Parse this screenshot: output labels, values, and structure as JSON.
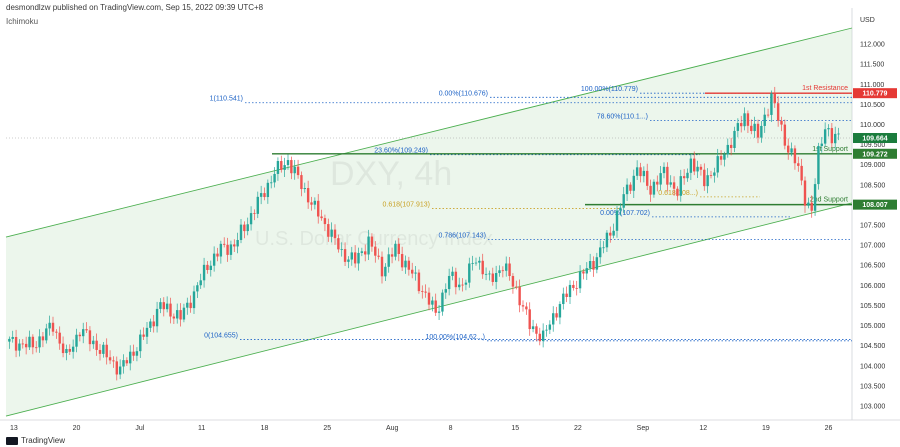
{
  "header": {
    "publish_info": "desmondlzw published on TradingView.com, Sep 15, 2022 09:39 UTC+8",
    "indicator": "Ichimoku",
    "footer_brand": "TradingView"
  },
  "chart_data": {
    "type": "candlestick",
    "watermark_symbol": "DXY, 4h",
    "watermark_name": "U.S. Dollar Currency Index",
    "currency": "USD",
    "y_ticks": [
      "112.000",
      "111.500",
      "111.000",
      "110.500",
      "110.000",
      "109.500",
      "109.000",
      "108.500",
      "108.000",
      "107.500",
      "107.000",
      "106.500",
      "106.000",
      "105.500",
      "105.000",
      "104.500",
      "104.000",
      "103.500",
      "103.000"
    ],
    "ylim": [
      102.8,
      112.4
    ],
    "x_ticks": [
      "13",
      "20",
      "Jul",
      "11",
      "18",
      "25",
      "Aug",
      "8",
      "15",
      "22",
      "Sep",
      "12",
      "19",
      "26"
    ],
    "close_path": [
      {
        "t": 0,
        "v": 104.6
      },
      {
        "t": 4,
        "v": 104.5
      },
      {
        "t": 7,
        "v": 105.0
      },
      {
        "t": 9,
        "v": 104.2
      },
      {
        "t": 11,
        "v": 104.9
      },
      {
        "t": 14,
        "v": 104.4
      },
      {
        "t": 17,
        "v": 103.9
      },
      {
        "t": 20,
        "v": 104.6
      },
      {
        "t": 23,
        "v": 105.5
      },
      {
        "t": 26,
        "v": 105.2
      },
      {
        "t": 28,
        "v": 105.8
      },
      {
        "t": 30,
        "v": 106.5
      },
      {
        "t": 32,
        "v": 106.9
      },
      {
        "t": 34,
        "v": 107.0
      },
      {
        "t": 36,
        "v": 107.6
      },
      {
        "t": 38,
        "v": 108.2
      },
      {
        "t": 40,
        "v": 108.8
      },
      {
        "t": 42,
        "v": 109.1
      },
      {
        "t": 44,
        "v": 108.5
      },
      {
        "t": 46,
        "v": 107.9
      },
      {
        "t": 48,
        "v": 107.4
      },
      {
        "t": 50,
        "v": 106.8
      },
      {
        "t": 52,
        "v": 106.6
      },
      {
        "t": 54,
        "v": 107.1
      },
      {
        "t": 56,
        "v": 106.4
      },
      {
        "t": 58,
        "v": 106.9
      },
      {
        "t": 60,
        "v": 106.4
      },
      {
        "t": 62,
        "v": 105.9
      },
      {
        "t": 64,
        "v": 105.3
      },
      {
        "t": 66,
        "v": 106.2
      },
      {
        "t": 68,
        "v": 106.0
      },
      {
        "t": 70,
        "v": 106.7
      },
      {
        "t": 72,
        "v": 106.1
      },
      {
        "t": 74,
        "v": 106.5
      },
      {
        "t": 76,
        "v": 105.9
      },
      {
        "t": 78,
        "v": 105.0
      },
      {
        "t": 80,
        "v": 104.7
      },
      {
        "t": 82,
        "v": 105.4
      },
      {
        "t": 84,
        "v": 105.9
      },
      {
        "t": 86,
        "v": 106.3
      },
      {
        "t": 88,
        "v": 106.7
      },
      {
        "t": 90,
        "v": 107.3
      },
      {
        "t": 92,
        "v": 108.2
      },
      {
        "t": 94,
        "v": 108.9
      },
      {
        "t": 96,
        "v": 108.4
      },
      {
        "t": 98,
        "v": 108.8
      },
      {
        "t": 100,
        "v": 108.3
      },
      {
        "t": 102,
        "v": 109.1
      },
      {
        "t": 104,
        "v": 108.6
      },
      {
        "t": 106,
        "v": 109.0
      },
      {
        "t": 108,
        "v": 109.6
      },
      {
        "t": 110,
        "v": 110.2
      },
      {
        "t": 112,
        "v": 109.7
      },
      {
        "t": 114,
        "v": 110.7
      },
      {
        "t": 116,
        "v": 109.6
      },
      {
        "t": 118,
        "v": 108.9
      },
      {
        "t": 119,
        "v": 108.2
      },
      {
        "t": 120,
        "v": 107.8
      },
      {
        "t": 121,
        "v": 109.3
      },
      {
        "t": 122,
        "v": 110.0
      },
      {
        "t": 123,
        "v": 109.6
      },
      {
        "t": 124,
        "v": 109.7
      }
    ],
    "horizontal_levels": [
      {
        "label": "1st Resistance",
        "value": 110.779,
        "tag": "110.779",
        "color": "#e53935"
      },
      {
        "label": "1st Support",
        "value": 109.272,
        "tag": "109.272",
        "color": "#2e7d32"
      },
      {
        "label": "2nd Support",
        "value": 108.007,
        "tag": "108.007",
        "color": "#2e7d32"
      }
    ],
    "current_price": {
      "value": 109.664,
      "tag": "109.664"
    },
    "fib_labels": [
      {
        "text": "1(110.541)",
        "value": 110.541
      },
      {
        "text": "0.00%(110.676)",
        "value": 110.676
      },
      {
        "text": "100.00%(110.779)",
        "value": 110.779
      },
      {
        "text": "78.60%(110.1...)",
        "value": 110.1
      },
      {
        "text": "23.60%(109.249)",
        "value": 109.249
      },
      {
        "text": "0.618(107.913)",
        "value": 107.913
      },
      {
        "text": "0.618(108...)",
        "value": 108.2
      },
      {
        "text": "0.00%(107.702)",
        "value": 107.702
      },
      {
        "text": "0.786(107.143)",
        "value": 107.143
      },
      {
        "text": "0(104.655)",
        "value": 104.655
      },
      {
        "text": "100.00%(104.62...)",
        "value": 104.62
      }
    ],
    "colors": {
      "up": "#26a69a",
      "down": "#ef5350",
      "channel": "#4caf50",
      "fib": "#1e63c6",
      "resistance": "#e53935",
      "support": "#2e7d32"
    }
  }
}
